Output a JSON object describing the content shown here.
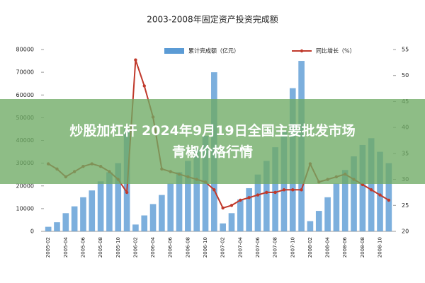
{
  "chart_data": {
    "type": "bar-line",
    "title": "2003-2008年固定资产投资完成额",
    "categories": [
      "2005-02",
      null,
      "2005-04",
      null,
      "2005-06",
      null,
      "2005-08",
      null,
      "2005-10",
      null,
      "2006-02",
      null,
      "2006-04",
      null,
      "2006-06",
      null,
      "2006-08",
      null,
      "2006-10",
      null,
      "2007-02",
      null,
      "2007-04",
      null,
      "2007-06",
      null,
      "2007-08",
      null,
      "2007-10",
      null,
      "2008-02",
      null,
      "2008-04",
      null,
      "2008-06",
      null,
      "2008-08",
      null,
      "2008-10",
      null
    ],
    "series": [
      {
        "name": "累计完成额（亿元）",
        "color": "#5b9bd5",
        "values": [
          2000,
          4000,
          8000,
          11000,
          15000,
          18000,
          22000,
          26000,
          30000,
          45000,
          3000,
          7000,
          12000,
          16000,
          21000,
          26000,
          31000,
          36000,
          42000,
          70000,
          3500,
          8000,
          14000,
          19000,
          25000,
          31000,
          37000,
          44000,
          63000,
          75000,
          4500,
          9000,
          15000,
          21000,
          27000,
          33000,
          38000,
          41000,
          35000,
          30000
        ]
      },
      {
        "name": "同比增长（%）",
        "color": "#c0392b",
        "axis": "y2",
        "values": [
          33,
          32,
          30.5,
          31.5,
          32.5,
          33,
          32.5,
          31.5,
          30,
          27.5,
          53,
          48,
          42,
          32,
          31.5,
          31,
          30.5,
          30,
          29.5,
          28,
          24.5,
          25,
          26,
          26.5,
          27,
          27.5,
          27.5,
          28,
          28,
          28,
          33,
          29.5,
          30,
          30.5,
          31,
          30,
          29,
          28,
          27,
          26
        ]
      }
    ],
    "ylim": [
      0,
      80000
    ],
    "yticks": [
      0,
      10000,
      20000,
      30000,
      40000,
      50000,
      60000,
      70000,
      80000
    ],
    "y2lim": [
      20,
      55
    ],
    "y2ticks": [
      20,
      25,
      30,
      35,
      40,
      45,
      50,
      55
    ]
  },
  "overlay": {
    "lines": [
      "炒股加杠杆 2024年9月19日全国主要批发市场",
      "青椒价格行情"
    ]
  }
}
